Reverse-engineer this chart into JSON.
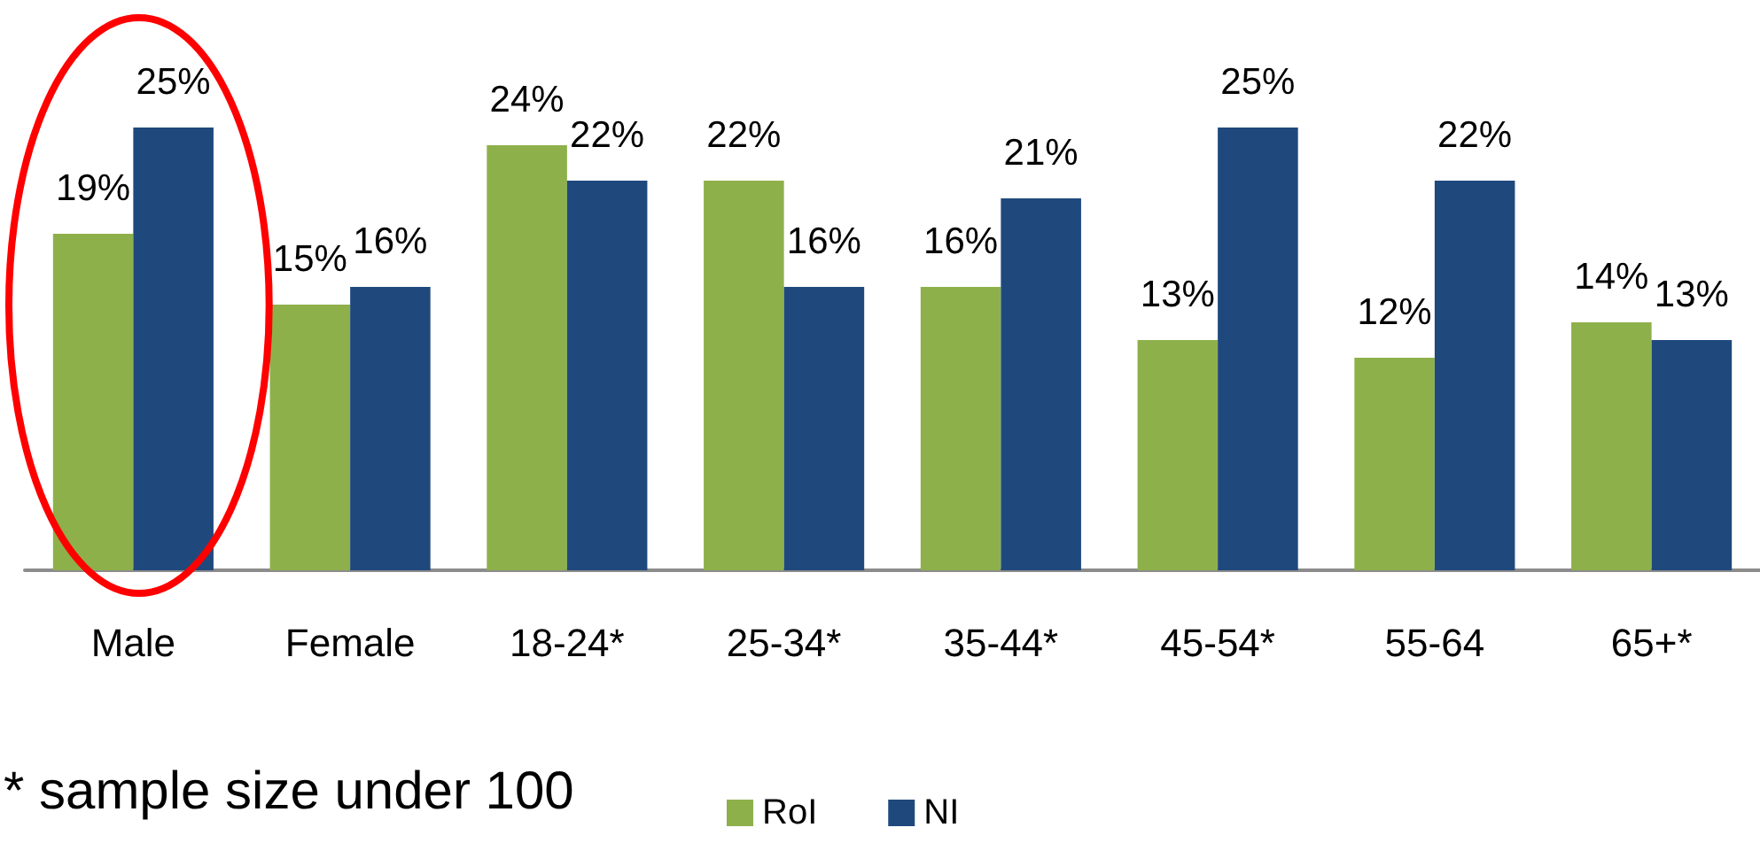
{
  "chart_data": {
    "type": "bar",
    "categories": [
      "Male",
      "Female",
      "18-24*",
      "25-34*",
      "35-44*",
      "45-54*",
      "55-64",
      "65+*"
    ],
    "series": [
      {
        "name": "RoI",
        "color": "#8eb04b",
        "values": [
          19,
          15,
          24,
          22,
          16,
          13,
          12,
          14
        ],
        "value_labels": [
          "19%",
          "15%",
          "24%",
          "22%",
          "16%",
          "13%",
          "12%",
          "14%"
        ]
      },
      {
        "name": "NI",
        "color": "#1f497d",
        "values": [
          25,
          16,
          22,
          16,
          21,
          25,
          22,
          13
        ],
        "value_labels": [
          "25%",
          "16%",
          "22%",
          "16%",
          "21%",
          "25%",
          "22%",
          "13%"
        ]
      }
    ],
    "legend": "bottom",
    "annotations": [
      "* sample size under 100"
    ]
  }
}
